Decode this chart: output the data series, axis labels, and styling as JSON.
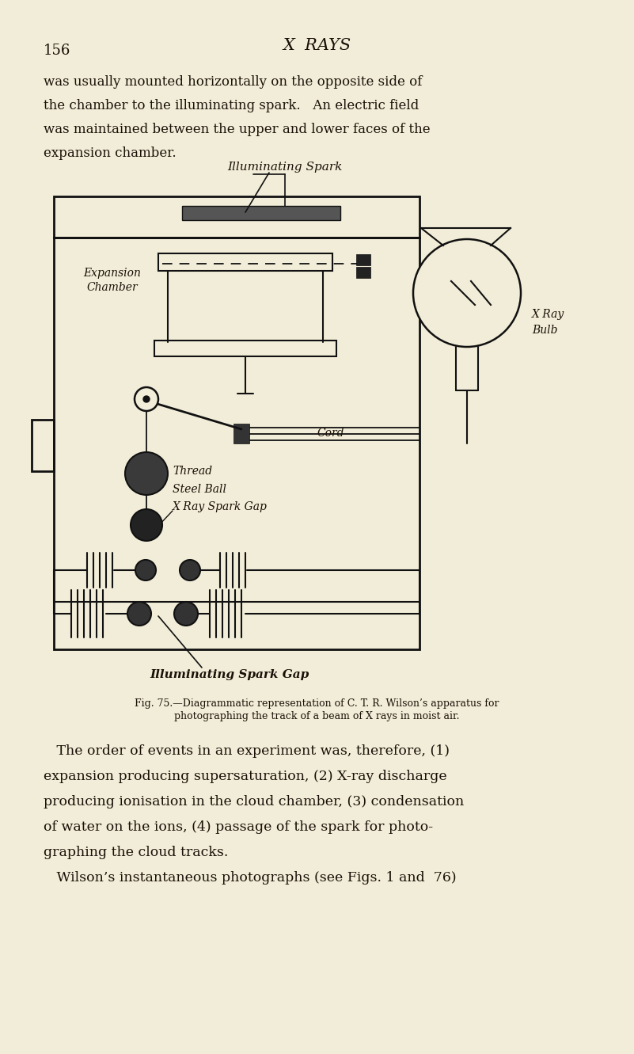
{
  "bg_color": "#f2edd8",
  "text_color": "#1a1008",
  "line_color": "#111111",
  "page_number": "156",
  "page_header": "X  RAYS",
  "body_text_top_lines": [
    "was usually mounted horizontally on the opposite side of",
    "the chamber to the illuminating spark.   An electric field",
    "was maintained between the upper and lower faces of the",
    "expansion chamber."
  ],
  "caption_line1": "Fig. 75.—Diagrammatic representation of C. T. R. Wilson’s apparatus for",
  "caption_line2": "photographing the track of a beam of X rays in moist air.",
  "body_text_bottom_lines": [
    "   The order of events in an experiment was, therefore, (1)",
    "expansion producing supersaturation, (2) X-ray discharge",
    "producing ionisation in the cloud chamber, (3) condensation",
    "of water on the ions, (4) passage of the spark for photo-",
    "graphing the cloud tracks.",
    "   Wilson’s instantaneous photographs (see Figs. 1 and  76)"
  ]
}
